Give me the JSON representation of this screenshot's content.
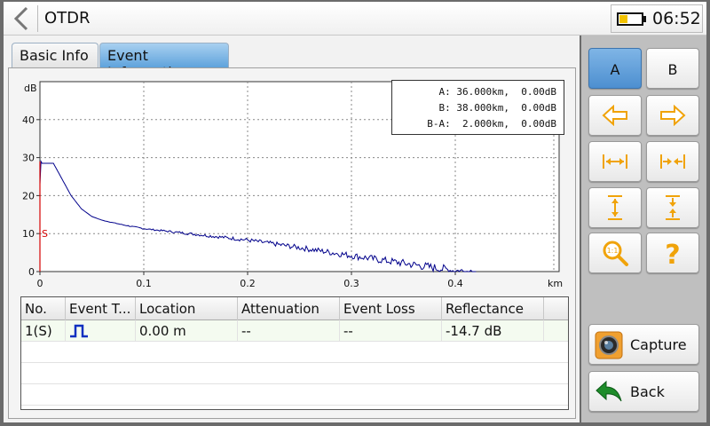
{
  "app": {
    "title": "OTDR",
    "time": "06:52",
    "battery_level": 0.35
  },
  "tabs": [
    {
      "label": "Basic Info",
      "active": false
    },
    {
      "label": "Event Information",
      "active": true
    }
  ],
  "chart_data": {
    "type": "line",
    "ylabel": "dB",
    "xlabel": "km",
    "xlim": [
      0,
      0.5
    ],
    "ylim": [
      0,
      50
    ],
    "x_ticks": [
      "0",
      "0.1",
      "0.2",
      "0.3",
      "0.4"
    ],
    "y_ticks": [
      "0",
      "10",
      "20",
      "30",
      "40"
    ],
    "grid": true,
    "marker_label": "S",
    "series": [
      {
        "color": "#00008b",
        "x": [
          0.0,
          0.001,
          0.002,
          0.013,
          0.02,
          0.03,
          0.04,
          0.05,
          0.06,
          0.08,
          0.1,
          0.15,
          0.2,
          0.25,
          0.3,
          0.33,
          0.36,
          0.38,
          0.4,
          0.41,
          0.42
        ],
        "y": [
          23,
          29,
          28.5,
          28.5,
          25,
          20,
          16.5,
          14.5,
          13.5,
          12.3,
          11.3,
          9.8,
          8.3,
          6.3,
          4.2,
          3.0,
          1.8,
          1.0,
          0.2,
          0.1,
          0.0
        ]
      }
    ]
  },
  "cursor_info": {
    "a": "A: 36.000km,  0.00dB",
    "b": "B: 38.000km,  0.00dB",
    "ba": "B-A:  2.000km,  0.00dB"
  },
  "table": {
    "headers": [
      "No.",
      "Event T...",
      "Location",
      "Attenuation",
      "Event Loss",
      "Reflectance"
    ],
    "rows": [
      {
        "no": "1(S)",
        "event_type_icon": "reflective-event-icon",
        "location": "0.00 m",
        "attenuation": "--",
        "event_loss": "--",
        "reflectance": "-14.7 dB"
      }
    ]
  },
  "buttons": {
    "a_label": "A",
    "b_label": "B",
    "capture_label": "Capture",
    "back_label": "Back"
  },
  "colors": {
    "accent": "#4d8fd0",
    "icon_orange": "#f0a30a",
    "trace": "#00008b",
    "marker": "#d40000",
    "back_arrow": "#1e8c2a"
  }
}
